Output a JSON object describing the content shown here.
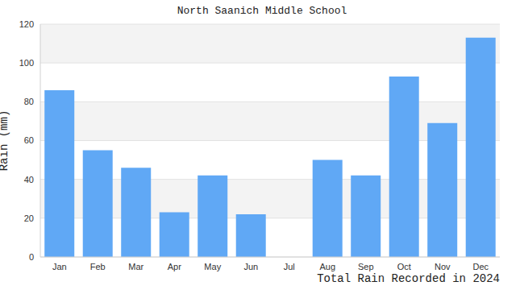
{
  "chart_data": {
    "type": "bar",
    "title": "North Saanich Middle School",
    "annotation": "Total Rain Recorded in 2024",
    "y_label": "Rain (mm)",
    "categories": [
      "Jan",
      "Feb",
      "Mar",
      "Apr",
      "May",
      "Jun",
      "Jul",
      "Aug",
      "Sep",
      "Oct",
      "Nov",
      "Dec"
    ],
    "values": [
      86,
      55,
      46,
      23,
      42,
      22,
      0,
      50,
      42,
      93,
      69,
      113
    ],
    "color": "#60a8f5",
    "ylim": [
      0,
      120
    ],
    "yticks": [
      0,
      20,
      40,
      60,
      80,
      100,
      120
    ],
    "grid": true
  }
}
